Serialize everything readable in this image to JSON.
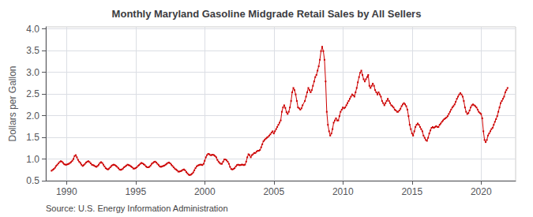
{
  "chart_data": {
    "type": "line",
    "title": "Monthly Maryland Gasoline Midgrade Retail Sales by All Sellers",
    "ylabel": "Dollars per Gallon",
    "annotation": "Source: U.S. Energy Information Administration",
    "color": "#cc0000",
    "marker": "square",
    "grid": true,
    "xlim": [
      1988.5,
      2022.5
    ],
    "ylim": [
      0.5,
      4.05
    ],
    "xticks": [
      1990,
      1995,
      2000,
      2005,
      2010,
      2015,
      2020
    ],
    "yticks": [
      0.5,
      {
        "value": 1.0,
        "label": "1.0"
      },
      1.5,
      {
        "value": 2.0,
        "label": "2.0"
      },
      2.5,
      {
        "value": 3.0,
        "label": "3.0"
      },
      3.5,
      {
        "value": 4.0,
        "label": "4.0"
      }
    ],
    "x": [
      1988.917,
      1989.0,
      1989.083,
      1989.167,
      1989.25,
      1989.333,
      1989.417,
      1989.5,
      1989.583,
      1989.667,
      1989.75,
      1989.833,
      1989.917,
      1990.0,
      1990.083,
      1990.167,
      1990.25,
      1990.333,
      1990.417,
      1990.5,
      1990.583,
      1990.667,
      1990.75,
      1990.833,
      1990.917,
      1991.0,
      1991.083,
      1991.167,
      1991.25,
      1991.333,
      1991.417,
      1991.5,
      1991.583,
      1991.667,
      1991.75,
      1991.833,
      1991.917,
      1992.0,
      1992.083,
      1992.167,
      1992.25,
      1992.333,
      1992.417,
      1992.5,
      1992.583,
      1992.667,
      1992.75,
      1992.833,
      1992.917,
      1993.0,
      1993.083,
      1993.167,
      1993.25,
      1993.333,
      1993.417,
      1993.5,
      1993.583,
      1993.667,
      1993.75,
      1993.833,
      1993.917,
      1994.0,
      1994.083,
      1994.167,
      1994.25,
      1994.333,
      1994.417,
      1994.5,
      1994.583,
      1994.667,
      1994.75,
      1994.833,
      1994.917,
      1995.0,
      1995.083,
      1995.167,
      1995.25,
      1995.333,
      1995.417,
      1995.5,
      1995.583,
      1995.667,
      1995.75,
      1995.833,
      1995.917,
      1996.0,
      1996.083,
      1996.167,
      1996.25,
      1996.333,
      1996.417,
      1996.5,
      1996.583,
      1996.667,
      1996.75,
      1996.833,
      1996.917,
      1997.0,
      1997.083,
      1997.167,
      1997.25,
      1997.333,
      1997.417,
      1997.5,
      1997.583,
      1997.667,
      1997.75,
      1997.833,
      1997.917,
      1998.0,
      1998.083,
      1998.167,
      1998.25,
      1998.333,
      1998.417,
      1998.5,
      1998.583,
      1998.667,
      1998.75,
      1998.833,
      1998.917,
      1999.0,
      1999.083,
      1999.167,
      1999.25,
      1999.333,
      1999.417,
      1999.5,
      1999.583,
      1999.667,
      1999.75,
      1999.833,
      1999.917,
      2000.0,
      2000.083,
      2000.167,
      2000.25,
      2000.333,
      2000.417,
      2000.5,
      2000.583,
      2000.667,
      2000.75,
      2000.833,
      2000.917,
      2001.0,
      2001.083,
      2001.167,
      2001.25,
      2001.333,
      2001.417,
      2001.5,
      2001.583,
      2001.667,
      2001.75,
      2001.833,
      2001.917,
      2002.0,
      2002.083,
      2002.167,
      2002.25,
      2002.333,
      2002.417,
      2002.5,
      2002.583,
      2002.667,
      2002.75,
      2002.833,
      2002.917,
      2003.0,
      2003.083,
      2003.167,
      2003.25,
      2003.333,
      2003.417,
      2003.5,
      2003.583,
      2003.667,
      2003.75,
      2003.833,
      2003.917,
      2004.0,
      2004.083,
      2004.167,
      2004.25,
      2004.333,
      2004.417,
      2004.5,
      2004.583,
      2004.667,
      2004.75,
      2004.833,
      2004.917,
      2005.0,
      2005.083,
      2005.167,
      2005.25,
      2005.333,
      2005.417,
      2005.5,
      2005.583,
      2005.667,
      2005.75,
      2005.833,
      2005.917,
      2006.0,
      2006.083,
      2006.167,
      2006.25,
      2006.333,
      2006.417,
      2006.5,
      2006.583,
      2006.667,
      2006.75,
      2006.833,
      2006.917,
      2007.0,
      2007.083,
      2007.25,
      2007.333,
      2007.417,
      2007.5,
      2007.583,
      2007.667,
      2007.75,
      2007.833,
      2007.917,
      2008.0,
      2008.083,
      2008.167,
      2008.25,
      2008.333,
      2008.417,
      2008.5,
      2008.583,
      2008.667,
      2008.75,
      2008.833,
      2008.917,
      2009.0,
      2009.083,
      2009.167,
      2009.25,
      2009.333,
      2009.417,
      2009.5,
      2009.583,
      2009.667,
      2009.75,
      2009.833,
      2009.917,
      2010.0,
      2010.083,
      2010.167,
      2010.25,
      2010.333,
      2010.417,
      2010.5,
      2010.583,
      2010.667,
      2010.75,
      2010.833,
      2010.917,
      2011.0,
      2011.083,
      2011.167,
      2011.25,
      2011.333,
      2011.417,
      2011.5,
      2011.583,
      2011.667,
      2011.75,
      2011.833,
      2011.917,
      2012.0,
      2012.083,
      2012.167,
      2012.25,
      2012.333,
      2012.417,
      2012.5,
      2012.583,
      2012.667,
      2012.75,
      2012.833,
      2012.917,
      2013.0,
      2013.083,
      2013.167,
      2013.25,
      2013.333,
      2013.417,
      2013.5,
      2013.583,
      2013.667,
      2013.75,
      2013.833,
      2013.917,
      2014.0,
      2014.083,
      2014.167,
      2014.25,
      2014.333,
      2014.417,
      2014.5,
      2014.583,
      2014.667,
      2014.75,
      2014.833,
      2014.917,
      2015.0,
      2015.083,
      2015.167,
      2015.25,
      2015.333,
      2015.417,
      2015.5,
      2015.583,
      2015.667,
      2015.75,
      2015.833,
      2015.917,
      2016.0,
      2016.083,
      2016.167,
      2016.25,
      2016.333,
      2016.417,
      2016.5,
      2016.583,
      2016.667,
      2016.75,
      2016.833,
      2016.917,
      2017.0,
      2017.083,
      2017.167,
      2017.25,
      2017.333,
      2017.417,
      2017.5,
      2017.583,
      2017.667,
      2017.75,
      2017.833,
      2017.917,
      2018.0,
      2018.083,
      2018.167,
      2018.25,
      2018.333,
      2018.417,
      2018.5,
      2018.583,
      2018.667,
      2018.75,
      2018.833,
      2018.917,
      2019.0,
      2019.083,
      2019.167,
      2019.25,
      2019.333,
      2019.417,
      2019.5,
      2019.583,
      2019.667,
      2019.75,
      2019.833,
      2019.917,
      2020.0,
      2020.083,
      2020.167,
      2020.25,
      2020.333,
      2020.417,
      2020.5,
      2020.583,
      2020.667,
      2020.75,
      2020.833,
      2020.917,
      2021.0,
      2021.083,
      2021.167,
      2021.25,
      2021.333,
      2021.417,
      2021.5,
      2021.583,
      2021.667,
      2021.75,
      2021.833,
      2021.917
    ],
    "values": [
      0.73,
      0.75,
      0.77,
      0.8,
      0.84,
      0.87,
      0.9,
      0.93,
      0.95,
      0.94,
      0.91,
      0.88,
      0.87,
      0.87,
      0.88,
      0.89,
      0.91,
      0.93,
      0.96,
      1.0,
      1.07,
      1.09,
      1.04,
      0.98,
      0.94,
      0.91,
      0.87,
      0.84,
      0.86,
      0.89,
      0.92,
      0.94,
      0.95,
      0.93,
      0.9,
      0.87,
      0.86,
      0.85,
      0.83,
      0.82,
      0.84,
      0.87,
      0.91,
      0.93,
      0.91,
      0.87,
      0.83,
      0.79,
      0.77,
      0.76,
      0.78,
      0.81,
      0.84,
      0.86,
      0.87,
      0.86,
      0.84,
      0.82,
      0.79,
      0.76,
      0.75,
      0.76,
      0.78,
      0.81,
      0.83,
      0.85,
      0.87,
      0.86,
      0.85,
      0.83,
      0.81,
      0.78,
      0.78,
      0.79,
      0.81,
      0.84,
      0.86,
      0.89,
      0.91,
      0.9,
      0.88,
      0.86,
      0.83,
      0.81,
      0.81,
      0.82,
      0.85,
      0.89,
      0.91,
      0.93,
      0.94,
      0.92,
      0.89,
      0.86,
      0.83,
      0.82,
      0.83,
      0.84,
      0.85,
      0.87,
      0.89,
      0.91,
      0.92,
      0.9,
      0.87,
      0.84,
      0.81,
      0.78,
      0.76,
      0.74,
      0.71,
      0.71,
      0.72,
      0.73,
      0.75,
      0.76,
      0.74,
      0.7,
      0.67,
      0.64,
      0.63,
      0.64,
      0.66,
      0.69,
      0.74,
      0.79,
      0.83,
      0.85,
      0.86,
      0.87,
      0.87,
      0.86,
      0.89,
      0.96,
      1.04,
      1.09,
      1.12,
      1.11,
      1.09,
      1.09,
      1.1,
      1.09,
      1.07,
      1.04,
      0.98,
      0.94,
      0.91,
      0.89,
      0.89,
      0.94,
      0.99,
      0.99,
      0.97,
      0.94,
      0.89,
      0.82,
      0.77,
      0.76,
      0.77,
      0.79,
      0.83,
      0.86,
      0.87,
      0.86,
      0.86,
      0.87,
      0.87,
      0.86,
      0.87,
      0.94,
      1.04,
      1.11,
      1.09,
      1.04,
      1.09,
      1.11,
      1.14,
      1.14,
      1.17,
      1.19,
      1.19,
      1.21,
      1.27,
      1.34,
      1.41,
      1.44,
      1.47,
      1.49,
      1.51,
      1.54,
      1.57,
      1.61,
      1.64,
      1.59,
      1.64,
      1.69,
      1.74,
      1.79,
      1.84,
      1.89,
      2.09,
      2.19,
      2.24,
      2.18,
      2.08,
      2.04,
      2.09,
      2.19,
      2.34,
      2.54,
      2.64,
      2.59,
      2.49,
      2.34,
      2.19,
      2.17,
      2.14,
      2.17,
      2.24,
      2.34,
      2.44,
      2.54,
      2.64,
      2.59,
      2.54,
      2.59,
      2.69,
      2.79,
      2.89,
      2.94,
      3.04,
      3.14,
      3.29,
      3.49,
      3.59,
      3.49,
      3.29,
      2.79,
      2.09,
      1.79,
      1.64,
      1.54,
      1.59,
      1.69,
      1.84,
      1.89,
      1.94,
      1.89,
      1.89,
      1.99,
      2.09,
      2.14,
      2.19,
      2.17,
      2.19,
      2.24,
      2.29,
      2.34,
      2.39,
      2.44,
      2.49,
      2.47,
      2.44,
      2.54,
      2.64,
      2.77,
      2.89,
      2.99,
      3.04,
      2.94,
      2.84,
      2.79,
      2.84,
      2.89,
      2.94,
      2.69,
      2.64,
      2.69,
      2.74,
      2.69,
      2.59,
      2.54,
      2.49,
      2.54,
      2.49,
      2.44,
      2.34,
      2.29,
      2.24,
      2.29,
      2.34,
      2.39,
      2.34,
      2.29,
      2.24,
      2.22,
      2.19,
      2.14,
      2.12,
      2.09,
      2.09,
      2.12,
      2.16,
      2.22,
      2.26,
      2.29,
      2.26,
      2.22,
      2.14,
      1.99,
      1.79,
      1.69,
      1.59,
      1.54,
      1.64,
      1.74,
      1.79,
      1.82,
      1.79,
      1.74,
      1.69,
      1.64,
      1.54,
      1.49,
      1.44,
      1.42,
      1.49,
      1.59,
      1.66,
      1.72,
      1.74,
      1.72,
      1.74,
      1.76,
      1.74,
      1.74,
      1.79,
      1.82,
      1.86,
      1.89,
      1.92,
      1.94,
      1.96,
      1.99,
      2.04,
      2.09,
      2.14,
      2.19,
      2.22,
      2.26,
      2.32,
      2.39,
      2.44,
      2.49,
      2.52,
      2.49,
      2.44,
      2.34,
      2.19,
      2.09,
      2.04,
      2.06,
      2.12,
      2.19,
      2.24,
      2.26,
      2.24,
      2.22,
      2.19,
      2.14,
      2.09,
      2.06,
      2.04,
      1.94,
      1.64,
      1.44,
      1.39,
      1.44,
      1.54,
      1.59,
      1.64,
      1.69,
      1.72,
      1.79,
      1.86,
      1.92,
      1.99,
      2.09,
      2.19,
      2.29,
      2.34,
      2.39,
      2.44,
      2.54,
      2.59,
      2.64
    ]
  }
}
